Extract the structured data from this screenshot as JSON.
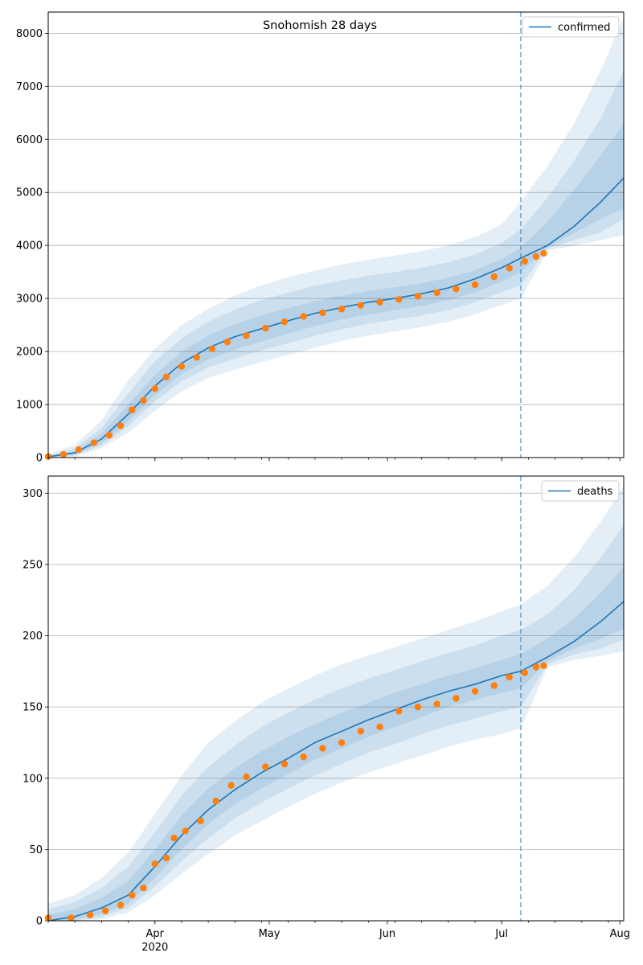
{
  "figure": {
    "title": "Snohomish 28 days"
  },
  "chart_data": [
    {
      "type": "line",
      "title": "Snohomish 28 days",
      "xlabel": "",
      "ylabel": "",
      "ylim": [
        0,
        8400
      ],
      "yticks": [
        0,
        1000,
        2000,
        3000,
        4000,
        5000,
        6000,
        7000,
        8000
      ],
      "xlim": [
        "2020-03-04",
        "2020-08-02"
      ],
      "xtick_labels": [],
      "grid": "y",
      "legend_position": "top-right",
      "forecast_start": "2020-07-06",
      "series": [
        {
          "name": "confirmed",
          "color": "#1f77b4",
          "x": [
            "2020-03-04",
            "2020-03-11",
            "2020-03-18",
            "2020-03-25",
            "2020-04-01",
            "2020-04-08",
            "2020-04-15",
            "2020-04-22",
            "2020-04-29",
            "2020-05-06",
            "2020-05-13",
            "2020-05-20",
            "2020-05-27",
            "2020-06-03",
            "2020-06-10",
            "2020-06-17",
            "2020-06-24",
            "2020-07-01",
            "2020-07-06",
            "2020-07-13",
            "2020-07-20",
            "2020-07-27",
            "2020-08-02"
          ],
          "values": [
            15,
            90,
            350,
            820,
            1350,
            1780,
            2070,
            2280,
            2430,
            2580,
            2720,
            2830,
            2930,
            3000,
            3090,
            3200,
            3370,
            3580,
            3760,
            4000,
            4360,
            4820,
            5270
          ]
        },
        {
          "name": "observed",
          "color": "#ff7f0e",
          "x": [
            "2020-03-04",
            "2020-03-08",
            "2020-03-12",
            "2020-03-16",
            "2020-03-20",
            "2020-03-23",
            "2020-03-26",
            "2020-03-29",
            "2020-04-01",
            "2020-04-04",
            "2020-04-08",
            "2020-04-12",
            "2020-04-16",
            "2020-04-20",
            "2020-04-25",
            "2020-04-30",
            "2020-05-05",
            "2020-05-10",
            "2020-05-15",
            "2020-05-20",
            "2020-05-25",
            "2020-05-30",
            "2020-06-04",
            "2020-06-09",
            "2020-06-14",
            "2020-06-19",
            "2020-06-24",
            "2020-06-29",
            "2020-07-03",
            "2020-07-07",
            "2020-07-10",
            "2020-07-12"
          ],
          "values": [
            20,
            60,
            150,
            280,
            420,
            600,
            900,
            1080,
            1300,
            1520,
            1720,
            1890,
            2050,
            2180,
            2300,
            2440,
            2560,
            2660,
            2730,
            2800,
            2870,
            2930,
            2980,
            3040,
            3110,
            3180,
            3260,
            3410,
            3570,
            3700,
            3790,
            3850
          ]
        }
      ],
      "bands": [
        {
          "upper": [
            60,
            240,
            700,
            1450,
            2050,
            2500,
            2800,
            3050,
            3250,
            3400,
            3530,
            3640,
            3730,
            3810,
            3890,
            4000,
            4160,
            4400,
            4820,
            5500,
            6300,
            7300,
            8300
          ],
          "lower": [
            0,
            20,
            180,
            470,
            880,
            1250,
            1500,
            1660,
            1800,
            1940,
            2070,
            2200,
            2300,
            2380,
            2460,
            2560,
            2700,
            2880,
            3000,
            3900,
            4000,
            4100,
            4200
          ]
        },
        {
          "upper": [
            40,
            175,
            560,
            1210,
            1820,
            2250,
            2560,
            2790,
            2970,
            3110,
            3240,
            3340,
            3430,
            3500,
            3580,
            3680,
            3830,
            4050,
            4300,
            4900,
            5600,
            6400,
            7300
          ],
          "lower": [
            0,
            40,
            230,
            590,
            1060,
            1440,
            1700,
            1870,
            2020,
            2160,
            2300,
            2420,
            2520,
            2600,
            2680,
            2780,
            2930,
            3120,
            3250,
            3940,
            4100,
            4250,
            4500
          ]
        },
        {
          "upper": [
            25,
            125,
            450,
            1000,
            1560,
            2000,
            2300,
            2520,
            2680,
            2820,
            2950,
            3050,
            3140,
            3210,
            3290,
            3390,
            3530,
            3750,
            3950,
            4450,
            5050,
            5700,
            6300
          ],
          "lower": [
            5,
            60,
            280,
            680,
            1180,
            1580,
            1850,
            2040,
            2190,
            2340,
            2480,
            2600,
            2700,
            2780,
            2860,
            2970,
            3120,
            3320,
            3500,
            3970,
            4230,
            4500,
            4700
          ]
        }
      ]
    },
    {
      "type": "line",
      "title": "",
      "xlabel": "",
      "ylabel": "",
      "ylim": [
        0,
        312
      ],
      "yticks": [
        0,
        50,
        100,
        150,
        200,
        250,
        300
      ],
      "xlim": [
        "2020-03-04",
        "2020-08-02"
      ],
      "xtick_labels": [
        {
          "date": "2020-04-01",
          "label": "Apr",
          "sublabel": "2020"
        },
        {
          "date": "2020-05-01",
          "label": "May",
          "sublabel": ""
        },
        {
          "date": "2020-06-01",
          "label": "Jun",
          "sublabel": ""
        },
        {
          "date": "2020-07-01",
          "label": "Jul",
          "sublabel": ""
        },
        {
          "date": "2020-08-01",
          "label": "Aug",
          "sublabel": ""
        }
      ],
      "grid": "y",
      "legend_position": "top-right",
      "forecast_start": "2020-07-06",
      "series": [
        {
          "name": "deaths",
          "color": "#1f77b4",
          "x": [
            "2020-03-04",
            "2020-03-11",
            "2020-03-18",
            "2020-03-25",
            "2020-04-01",
            "2020-04-08",
            "2020-04-15",
            "2020-04-22",
            "2020-04-29",
            "2020-05-06",
            "2020-05-13",
            "2020-05-20",
            "2020-05-27",
            "2020-06-03",
            "2020-06-10",
            "2020-06-17",
            "2020-06-24",
            "2020-07-01",
            "2020-07-06",
            "2020-07-13",
            "2020-07-20",
            "2020-07-27",
            "2020-08-02"
          ],
          "values": [
            0,
            3,
            9,
            18,
            38,
            60,
            78,
            92,
            104,
            114,
            125,
            133,
            141,
            148,
            155,
            161,
            166,
            172,
            175,
            185,
            196,
            210,
            224
          ]
        },
        {
          "name": "observed",
          "color": "#ff7f0e",
          "x": [
            "2020-03-04",
            "2020-03-10",
            "2020-03-15",
            "2020-03-19",
            "2020-03-23",
            "2020-03-26",
            "2020-03-29",
            "2020-04-01",
            "2020-04-04",
            "2020-04-06",
            "2020-04-09",
            "2020-04-13",
            "2020-04-17",
            "2020-04-21",
            "2020-04-25",
            "2020-04-30",
            "2020-05-05",
            "2020-05-10",
            "2020-05-15",
            "2020-05-20",
            "2020-05-25",
            "2020-05-30",
            "2020-06-04",
            "2020-06-09",
            "2020-06-14",
            "2020-06-19",
            "2020-06-24",
            "2020-06-29",
            "2020-07-03",
            "2020-07-07",
            "2020-07-10",
            "2020-07-12"
          ],
          "values": [
            2,
            2,
            4,
            7,
            11,
            18,
            23,
            40,
            44,
            58,
            63,
            70,
            84,
            95,
            101,
            108,
            110,
            115,
            121,
            125,
            133,
            136,
            147,
            150,
            152,
            156,
            161,
            165,
            171,
            174,
            178,
            179
          ]
        }
      ],
      "bands": [
        {
          "upper": [
            12,
            18,
            30,
            48,
            75,
            102,
            125,
            140,
            153,
            163,
            172,
            180,
            186,
            192,
            198,
            204,
            210,
            217,
            222,
            235,
            255,
            280,
            305
          ],
          "lower": [
            0,
            0,
            1,
            6,
            18,
            33,
            47,
            60,
            70,
            80,
            89,
            97,
            104,
            110,
            116,
            122,
            127,
            131,
            135,
            178,
            183,
            186,
            189
          ]
        },
        {
          "upper": [
            8,
            13,
            23,
            38,
            62,
            88,
            108,
            123,
            136,
            146,
            155,
            163,
            170,
            176,
            182,
            188,
            193,
            200,
            204,
            215,
            232,
            255,
            278
          ],
          "lower": [
            0,
            0,
            3,
            9,
            24,
            42,
            58,
            72,
            83,
            93,
            102,
            110,
            118,
            124,
            131,
            137,
            142,
            147,
            150,
            180,
            187,
            191,
            197
          ]
        },
        {
          "upper": [
            4,
            8,
            16,
            28,
            50,
            74,
            93,
            107,
            119,
            129,
            138,
            146,
            153,
            160,
            166,
            172,
            177,
            183,
            187,
            198,
            212,
            230,
            248
          ],
          "lower": [
            0,
            1,
            5,
            12,
            30,
            50,
            68,
            82,
            93,
            103,
            113,
            121,
            129,
            136,
            143,
            150,
            155,
            160,
            163,
            182,
            191,
            198,
            205
          ]
        }
      ]
    }
  ]
}
